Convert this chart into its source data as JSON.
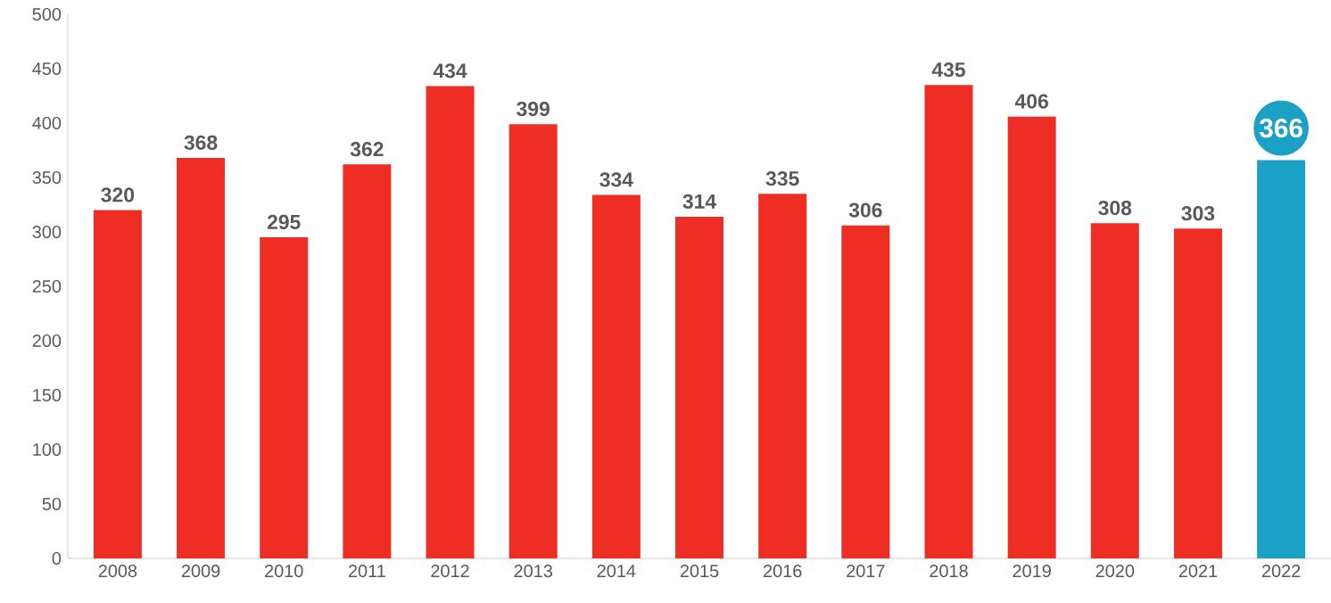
{
  "chart_data": {
    "type": "bar",
    "categories": [
      "2008",
      "2009",
      "2010",
      "2011",
      "2012",
      "2013",
      "2014",
      "2015",
      "2016",
      "2017",
      "2018",
      "2019",
      "2020",
      "2021",
      "2022"
    ],
    "values": [
      320,
      368,
      295,
      362,
      434,
      399,
      334,
      314,
      335,
      306,
      435,
      406,
      308,
      303,
      366
    ],
    "colors": [
      "#ee2e24",
      "#ee2e24",
      "#ee2e24",
      "#ee2e24",
      "#ee2e24",
      "#ee2e24",
      "#ee2e24",
      "#ee2e24",
      "#ee2e24",
      "#ee2e24",
      "#ee2e24",
      "#ee2e24",
      "#ee2e24",
      "#ee2e24",
      "#1ba1c6"
    ],
    "ylim": [
      0,
      500
    ],
    "yticks": [
      0,
      50,
      100,
      150,
      200,
      250,
      300,
      350,
      400,
      450,
      500
    ],
    "grid": false,
    "data_labels": true
  }
}
